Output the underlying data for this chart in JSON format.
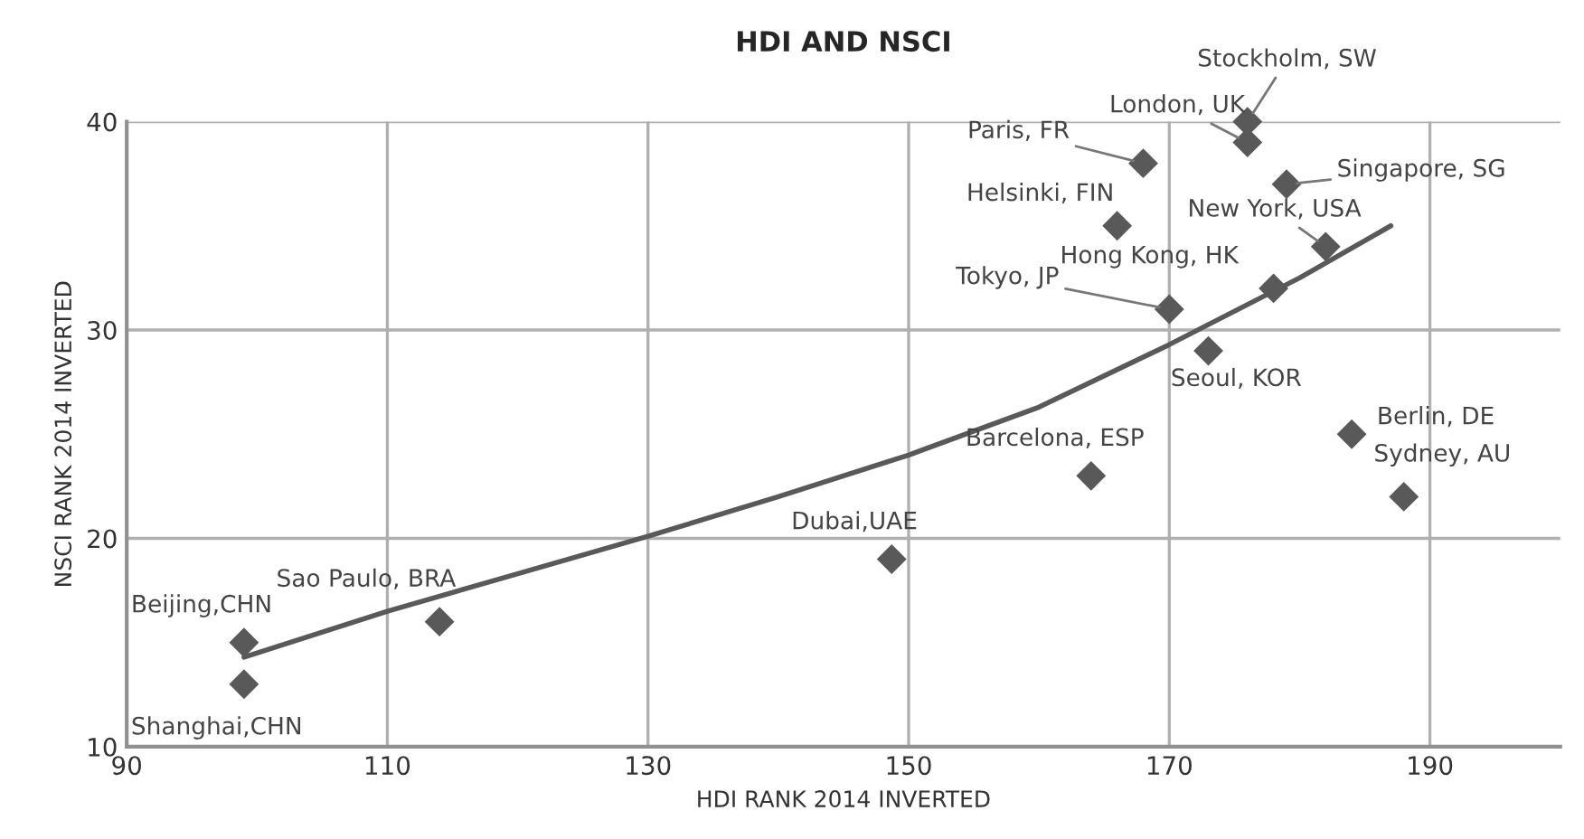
{
  "chart_data": {
    "type": "scatter",
    "title": "HDI AND NSCI",
    "xlabel": "HDI RANK 2014 INVERTED",
    "ylabel": "NSCI RANK 2014 INVERTED",
    "xlim": [
      90,
      200
    ],
    "ylim": [
      10,
      40
    ],
    "xticks": [
      90,
      110,
      130,
      150,
      170,
      190
    ],
    "yticks": [
      10,
      20,
      30,
      40
    ],
    "grid": true,
    "marker": "diamond",
    "series": [
      {
        "color": "#595959",
        "x": [
          99,
          99,
          114,
          148.7,
          164,
          173,
          170,
          178,
          182,
          166,
          168,
          176,
          176,
          179,
          184,
          188
        ],
        "values": [
          15,
          13,
          16,
          19,
          23,
          29,
          31,
          32,
          34,
          35,
          38,
          39,
          40,
          37,
          25,
          22
        ]
      },
      {
        "type": "line",
        "color": "#595959",
        "marker": "none",
        "x": [
          99,
          110,
          120,
          130,
          140,
          150,
          160,
          170,
          180,
          187
        ],
        "values": [
          14.3,
          16.5,
          18.3,
          20.1,
          22,
          24,
          26.3,
          29.3,
          32.5,
          35
        ]
      }
    ],
    "annotations": [
      {
        "text": "Beijing,CHN",
        "x": 99,
        "y": 15
      },
      {
        "text": "Shanghai,CHN",
        "x": 99,
        "y": 13
      },
      {
        "text": "Sao Paulo, BRA",
        "x": 114,
        "y": 16
      },
      {
        "text": "Dubai,UAE",
        "x": 148.7,
        "y": 19
      },
      {
        "text": "Barcelona, ESP",
        "x": 164,
        "y": 23
      },
      {
        "text": "Seoul, KOR",
        "x": 173,
        "y": 29
      },
      {
        "text": "Tokyo, JP",
        "x": 170,
        "y": 31
      },
      {
        "text": "Hong Kong, HK",
        "x": 178,
        "y": 32
      },
      {
        "text": "New York, USA",
        "x": 182,
        "y": 34
      },
      {
        "text": "Helsinki, FIN",
        "x": 166,
        "y": 35
      },
      {
        "text": "Paris, FR",
        "x": 168,
        "y": 38
      },
      {
        "text": "London, UK",
        "x": 176,
        "y": 39
      },
      {
        "text": "Stockholm, SW",
        "x": 176,
        "y": 40
      },
      {
        "text": "Singapore, SG",
        "x": 179,
        "y": 37
      },
      {
        "text": "Berlin, DE",
        "x": 184,
        "y": 25
      },
      {
        "text": "Sydney, AU",
        "x": 188,
        "y": 22
      }
    ]
  }
}
